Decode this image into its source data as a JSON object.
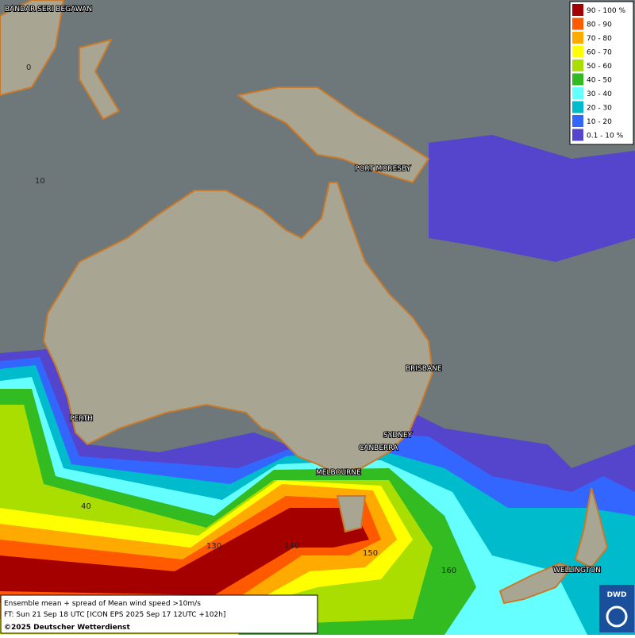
{
  "legend": {
    "items": [
      {
        "label": "90 - 100 %",
        "color": "#a50000"
      },
      {
        "label": "80 - 90",
        "color": "#ff5a00"
      },
      {
        "label": "70 - 80",
        "color": "#ffaa00"
      },
      {
        "label": "60 - 70",
        "color": "#ffff00"
      },
      {
        "label": "50 - 60",
        "color": "#aadd00"
      },
      {
        "label": "40 - 50",
        "color": "#33bb22"
      },
      {
        "label": "30 - 40",
        "color": "#66ffff"
      },
      {
        "label": "20 - 30",
        "color": "#00bbcc"
      },
      {
        "label": "10 - 20",
        "color": "#3366ff"
      },
      {
        "label": "0.1 - 10 %",
        "color": "#5544cc"
      }
    ]
  },
  "cities": [
    "BANDAR SERI BEGAWAN",
    "PORT MORESBY",
    "BRISBANE",
    "PERTH",
    "SYDNEY",
    "CANBERRA",
    "MELBOURNE",
    "WELLINGTON"
  ],
  "grid_labels": [
    "0",
    "10",
    "40",
    "130",
    "140",
    "150",
    "160"
  ],
  "footer": {
    "lines": [
      "Ensemble mean + spread of Mean wind speed >10m/s",
      "FT: Sun 21 Sep 18 UTC [ICON EPS 2025 Sep 17 12UTC +102h]",
      "©2025 Deutscher Wetterdienst"
    ]
  },
  "logo": "DWD"
}
